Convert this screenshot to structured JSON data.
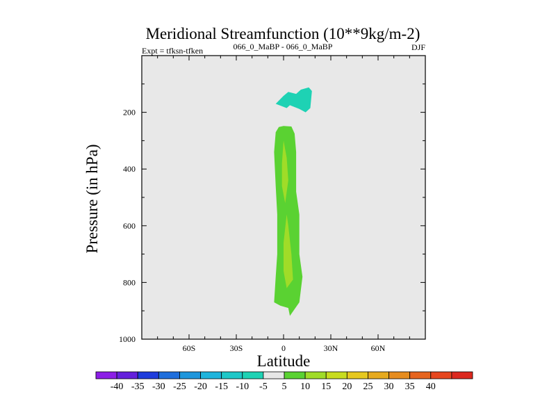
{
  "chart_data": {
    "type": "contour",
    "title": "Meridional Streamfunction (10**9kg/m-2)",
    "subtitle_left": "Expt = tfksn-tfken",
    "subtitle_center": "066_0_MaBP - 066_0_MaBP",
    "subtitle_right": "DJF",
    "xlabel": "Latitude",
    "ylabel": "Pressure (in hPa)",
    "xlim": [
      -90,
      90
    ],
    "ylim": [
      1000,
      0
    ],
    "x_ticks": [
      -60,
      -30,
      0,
      30,
      60
    ],
    "x_tick_labels": [
      "60S",
      "30S",
      "0",
      "30N",
      "60N"
    ],
    "y_ticks": [
      200,
      400,
      600,
      800,
      1000
    ],
    "y_tick_labels": [
      "200",
      "400",
      "600",
      "800",
      "1000"
    ],
    "background_color": "#e8e8e8",
    "regions": [
      {
        "name": "upper-negative-cell",
        "level_range": [
          -10,
          -5
        ],
        "color": "#1ed2b4",
        "points": [
          [
            -5,
            170
          ],
          [
            0,
            142
          ],
          [
            3,
            128
          ],
          [
            8,
            135
          ],
          [
            11,
            120
          ],
          [
            16,
            112
          ],
          [
            18,
            125
          ],
          [
            17,
            185
          ],
          [
            14,
            200
          ],
          [
            10,
            188
          ],
          [
            4,
            175
          ],
          [
            2,
            185
          ]
        ]
      },
      {
        "name": "lower-positive-cell",
        "level_range": [
          5,
          10
        ],
        "color": "#5ad232",
        "points": [
          [
            0,
            248
          ],
          [
            5,
            250
          ],
          [
            7,
            275
          ],
          [
            8,
            340
          ],
          [
            8,
            480
          ],
          [
            10,
            560
          ],
          [
            10,
            700
          ],
          [
            12,
            780
          ],
          [
            10,
            870
          ],
          [
            4,
            918
          ],
          [
            3,
            890
          ],
          [
            -2,
            882
          ],
          [
            -6,
            870
          ],
          [
            -5,
            780
          ],
          [
            -4,
            700
          ],
          [
            -4,
            560
          ],
          [
            -5,
            460
          ],
          [
            -6,
            340
          ],
          [
            -5,
            270
          ],
          [
            -3,
            252
          ]
        ]
      },
      {
        "name": "lower-positive-core-upper",
        "level_range": [
          10,
          15
        ],
        "color": "#a0dc28",
        "points": [
          [
            0,
            300
          ],
          [
            2,
            360
          ],
          [
            3,
            440
          ],
          [
            1,
            520
          ],
          [
            -1,
            460
          ],
          [
            -1,
            380
          ]
        ]
      },
      {
        "name": "lower-positive-core-lower",
        "level_range": [
          10,
          15
        ],
        "color": "#a0dc28",
        "points": [
          [
            2,
            560
          ],
          [
            3,
            600
          ],
          [
            5,
            700
          ],
          [
            6,
            790
          ],
          [
            2,
            820
          ],
          [
            0,
            760
          ],
          [
            0,
            660
          ]
        ]
      }
    ],
    "colorbar": {
      "colors": [
        "#8c1ee6",
        "#6420dc",
        "#1e3cdc",
        "#1e6edc",
        "#1e96dc",
        "#1eb4dc",
        "#1ec8c8",
        "#1ed2b4",
        "#e6e6e6",
        "#5ad232",
        "#a0dc28",
        "#c8dc1e",
        "#e6c81e",
        "#e6aa1e",
        "#e68c1e",
        "#e6641e",
        "#e6461e",
        "#dc281e"
      ],
      "labels": [
        "-40",
        "-35",
        "-30",
        "-25",
        "-20",
        "-15",
        "-10",
        "-5",
        "5",
        "10",
        "15",
        "20",
        "25",
        "30",
        "35",
        "40"
      ]
    }
  }
}
